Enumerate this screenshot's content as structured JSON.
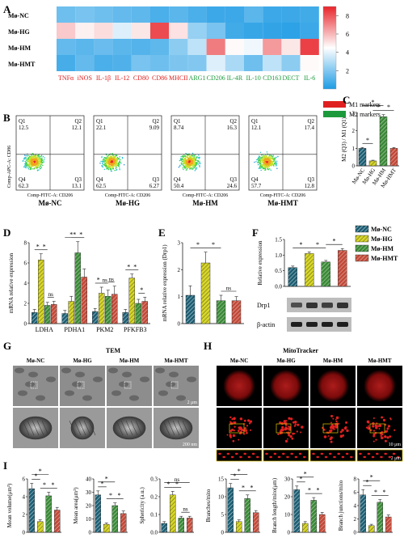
{
  "colors": {
    "nc": "#1f5f74",
    "hg": "#d6d52c",
    "hm": "#3c8a3a",
    "hmt": "#c24a3a",
    "m1": "#e02020",
    "m2": "#1c9a3b",
    "heat_low": "#1e9be4",
    "heat_high": "#e8242a"
  },
  "groups": [
    "Mø-NC",
    "Mø-HG",
    "Mø-HM",
    "Mø-HMT"
  ],
  "panel_a": {
    "label": "A",
    "rows": [
      "Mø-NC",
      "Mø-HG",
      "Mø-HM",
      "Mø-HMT"
    ],
    "columns": [
      {
        "name": "TNFα",
        "type": "m1"
      },
      {
        "name": "iNOS",
        "type": "m1"
      },
      {
        "name": "IL-1β",
        "type": "m1"
      },
      {
        "name": "IL-12",
        "type": "m1"
      },
      {
        "name": "CD80",
        "type": "m1"
      },
      {
        "name": "CD86",
        "type": "m1"
      },
      {
        "name": "MHCII",
        "type": "m1"
      },
      {
        "name": "ARG1",
        "type": "m2"
      },
      {
        "name": "CD206",
        "type": "m2"
      },
      {
        "name": "IL-4R",
        "type": "m2"
      },
      {
        "name": "IL-10",
        "type": "m2"
      },
      {
        "name": "CD163",
        "type": "m2"
      },
      {
        "name": "DECT",
        "type": "m2"
      },
      {
        "name": "IL-6",
        "type": "m2"
      }
    ],
    "colorbar_ticks": [
      2,
      4,
      6,
      8
    ],
    "colorbar_range": [
      0,
      9
    ],
    "legend": [
      {
        "label": "M1 markers",
        "type": "m1"
      },
      {
        "label": "M2 markers",
        "type": "m2"
      }
    ]
  },
  "panel_b": {
    "label": "B",
    "y_axis": "Comp-APC-A: CD86",
    "x_axis": "Comp-FITC-A: CD206",
    "plots": [
      {
        "name": "Mø-NC",
        "q1": "Q1",
        "q1v": "12.5",
        "q2": "Q2",
        "q2v": "12.1",
        "q3": "Q3",
        "q3v": "13.1",
        "q4": "Q4",
        "q4v": "62.3"
      },
      {
        "name": "Mø-HG",
        "q1": "Q1",
        "q1v": "22.1",
        "q2": "Q2",
        "q2v": "9.09",
        "q3": "Q3",
        "q3v": "6.27",
        "q4": "Q4",
        "q4v": "62.5"
      },
      {
        "name": "Mø-HM",
        "q1": "Q1",
        "q1v": "8.74",
        "q2": "Q2",
        "q2v": "16.3",
        "q3": "Q3",
        "q3v": "24.6",
        "q4": "Q4",
        "q4v": "50.4"
      },
      {
        "name": "Mø-HMT",
        "q1": "Q1",
        "q1v": "12.1",
        "q2": "Q2",
        "q2v": "17.4",
        "q3": "Q3",
        "q3v": "12.8",
        "q4": "Q4",
        "q4v": "57.7"
      }
    ]
  },
  "panel_c": {
    "label": "C"
  },
  "panel_d": {
    "label": "D"
  },
  "panel_e": {
    "label": "E"
  },
  "panel_f": {
    "label": "F",
    "blot_labels": [
      "Drp1",
      "β-actin"
    ]
  },
  "panel_g": {
    "label": "G",
    "title": "TEM",
    "scale_top": "2 μm",
    "scale_bottom": "200 nm"
  },
  "panel_h": {
    "label": "H",
    "title": "MitoTracker",
    "scale_mid": "10 μm",
    "scale_bottom": "2 μm"
  },
  "panel_i": {
    "label": "I"
  },
  "chart_data": [
    {
      "id": "A",
      "type": "heatmap",
      "rows": [
        "Mø-NC",
        "Mø-HG",
        "Mø-HM",
        "Mø-HMT"
      ],
      "columns": [
        "TNFα",
        "iNOS",
        "IL-1β",
        "IL-12",
        "CD80",
        "CD86",
        "MHCII",
        "ARG1",
        "CD206",
        "IL-4R",
        "IL-10",
        "CD163",
        "DECT",
        "IL-6"
      ],
      "values": [
        [
          1.6,
          1.8,
          1.6,
          1.4,
          1.3,
          0.9,
          1.2,
          0.9,
          0.6,
          0.6,
          1.2,
          0.6,
          0.6,
          0.7
        ],
        [
          5.6,
          4.8,
          5.2,
          3.8,
          5.0,
          8.2,
          5.1,
          2.4,
          1.8,
          0.7,
          0.5,
          0.4,
          0.3,
          0.6
        ],
        [
          1.4,
          1.2,
          1.5,
          1.2,
          1.1,
          1.3,
          2.2,
          3.2,
          7.2,
          4.6,
          4.2,
          6.6,
          5.0,
          8.4
        ],
        [
          0.8,
          1.4,
          0.9,
          1.0,
          1.8,
          1.6,
          1.9,
          2.0,
          3.8,
          2.8,
          1.6,
          3.2,
          2.2,
          4.6
        ]
      ],
      "color_range": [
        0,
        9
      ]
    },
    {
      "id": "C",
      "type": "bar",
      "categories": [
        "Mø-NC",
        "Mø-HG",
        "Mø-HM",
        "Mø-HMT"
      ],
      "values": [
        1.0,
        0.28,
        2.8,
        1.0
      ],
      "errors": [
        0.05,
        0.04,
        0.12,
        0.05
      ],
      "ylabel": "M2 (Q3) / M1 (Q1)",
      "ylim": [
        0,
        3
      ],
      "yticks": [
        0,
        1,
        2,
        3
      ],
      "sig": [
        {
          "from": 0,
          "to": 1,
          "label": "*"
        },
        {
          "from": 0,
          "to": 2,
          "label": "*"
        },
        {
          "from": 1,
          "to": 2,
          "label": "*"
        },
        {
          "from": 2,
          "to": 3,
          "label": "*"
        }
      ]
    },
    {
      "id": "D",
      "type": "bar",
      "categories": [
        "LDHA",
        "PDHA1",
        "PKM2",
        "PFKFB3"
      ],
      "series": [
        {
          "name": "Mø-NC",
          "values": [
            1.1,
            1.0,
            1.2,
            1.1
          ],
          "errors": [
            0.3,
            0.3,
            0.3,
            0.3
          ]
        },
        {
          "name": "Mø-HG",
          "values": [
            6.3,
            2.2,
            3.0,
            4.5
          ],
          "errors": [
            0.6,
            0.5,
            0.6,
            0.4
          ]
        },
        {
          "name": "Mø-HM",
          "values": [
            1.8,
            7.0,
            2.7,
            2.0
          ],
          "errors": [
            0.3,
            1.1,
            0.6,
            0.4
          ]
        },
        {
          "name": "Mø-HMT",
          "values": [
            1.9,
            4.6,
            2.9,
            2.2
          ],
          "errors": [
            0.3,
            0.8,
            0.8,
            0.4
          ]
        }
      ],
      "ylabel": "mRNA relative expression",
      "ylim": [
        0,
        8
      ],
      "yticks": [
        0,
        2,
        4,
        6,
        8
      ],
      "sig": [
        {
          "cat": 0,
          "from": 0,
          "to": 1,
          "label": "*"
        },
        {
          "cat": 0,
          "from": 1,
          "to": 2,
          "label": "*"
        },
        {
          "cat": 0,
          "from": 2,
          "to": 3,
          "label": "ns"
        },
        {
          "cat": 1,
          "from": 0,
          "to": 2,
          "label": "*"
        },
        {
          "cat": 1,
          "from": 1,
          "to": 2,
          "label": "*"
        },
        {
          "cat": 1,
          "from": 2,
          "to": 3,
          "label": "*"
        },
        {
          "cat": 2,
          "from": 0,
          "to": 1,
          "label": "*"
        },
        {
          "cat": 2,
          "from": 1,
          "to": 2,
          "label": "ns"
        },
        {
          "cat": 2,
          "from": 2,
          "to": 3,
          "label": "ns"
        },
        {
          "cat": 3,
          "from": 0,
          "to": 1,
          "label": "*"
        },
        {
          "cat": 3,
          "from": 1,
          "to": 2,
          "label": "*"
        },
        {
          "cat": 3,
          "from": 2,
          "to": 3,
          "label": "*"
        }
      ]
    },
    {
      "id": "E",
      "type": "bar",
      "categories": [
        "Mø-NC",
        "Mø-HG",
        "Mø-HM",
        "Mø-HMT"
      ],
      "values": [
        1.05,
        2.25,
        0.85,
        0.85
      ],
      "errors": [
        0.35,
        0.4,
        0.2,
        0.15
      ],
      "ylabel": "mRNA relative expression (Drp1)",
      "ylim": [
        0,
        3
      ],
      "yticks": [
        0,
        1,
        2,
        3
      ],
      "sig": [
        {
          "from": 0,
          "to": 1,
          "label": "*"
        },
        {
          "from": 1,
          "to": 2,
          "label": "*"
        },
        {
          "from": 2,
          "to": 3,
          "label": "ns"
        }
      ]
    },
    {
      "id": "F",
      "type": "bar",
      "categories": [
        "Mø-NC",
        "Mø-HG",
        "Mø-HM",
        "Mø-HMT"
      ],
      "values": [
        0.6,
        1.05,
        0.78,
        1.15
      ],
      "errors": [
        0.05,
        0.05,
        0.05,
        0.06
      ],
      "ylabel": "Relative expression",
      "ylim": [
        0,
        1.5
      ],
      "yticks": [
        0.0,
        0.5,
        1.0,
        1.5
      ],
      "sig": [
        {
          "from": 0,
          "to": 1,
          "label": "*"
        },
        {
          "from": 1,
          "to": 2,
          "label": "*"
        },
        {
          "from": 2,
          "to": 3,
          "label": "*"
        }
      ]
    },
    {
      "id": "I1",
      "type": "bar",
      "categories": [
        "Mø-NC",
        "Mø-HG",
        "Mø-HM",
        "Mø-HMT"
      ],
      "values": [
        4.9,
        1.2,
        4.1,
        2.5
      ],
      "errors": [
        0.6,
        0.2,
        0.4,
        0.3
      ],
      "ylabel": "Mean volume(μm³)",
      "ylim": [
        0,
        6
      ],
      "yticks": [
        0,
        2,
        4,
        6
      ],
      "sig": [
        {
          "from": 0,
          "to": 1,
          "label": "*"
        },
        {
          "from": 0,
          "to": 2,
          "label": "*"
        },
        {
          "from": 1,
          "to": 2,
          "label": "*"
        },
        {
          "from": 2,
          "to": 3,
          "label": "*"
        }
      ]
    },
    {
      "id": "I2",
      "type": "bar",
      "categories": [
        "Mø-NC",
        "Mø-HG",
        "Mø-HM",
        "Mø-HMT"
      ],
      "values": [
        28,
        6,
        20,
        14
      ],
      "errors": [
        3,
        1,
        2,
        2
      ],
      "ylabel": "Mean area(μm²)",
      "ylim": [
        0,
        40
      ],
      "yticks": [
        0,
        10,
        20,
        30,
        40
      ],
      "sig": [
        {
          "from": 0,
          "to": 1,
          "label": "*"
        },
        {
          "from": 0,
          "to": 2,
          "label": "*"
        },
        {
          "from": 1,
          "to": 2,
          "label": "*"
        },
        {
          "from": 2,
          "to": 3,
          "label": "*"
        }
      ]
    },
    {
      "id": "I3",
      "type": "bar",
      "categories": [
        "Mø-NC",
        "Mø-HG",
        "Mø-HM",
        "Mø-HMT"
      ],
      "values": [
        0.05,
        0.21,
        0.08,
        0.08
      ],
      "errors": [
        0.01,
        0.02,
        0.01,
        0.01
      ],
      "ylabel": "Sphericity (a.u.)",
      "ylim": [
        0,
        0.3
      ],
      "yticks": [
        0.0,
        0.1,
        0.2,
        0.3
      ],
      "sig": [
        {
          "from": 0,
          "to": 1,
          "label": "*"
        },
        {
          "from": 1,
          "to": 2,
          "label": "*"
        },
        {
          "from": 2,
          "to": 3,
          "label": "ns"
        },
        {
          "from": 0,
          "to": 3,
          "label": "ns"
        }
      ]
    },
    {
      "id": "I4",
      "type": "bar",
      "categories": [
        "Mø-NC",
        "Mø-HG",
        "Mø-HM",
        "Mø-HMT"
      ],
      "values": [
        12.5,
        3,
        9.5,
        5.5
      ],
      "errors": [
        1.2,
        0.5,
        1,
        0.6
      ],
      "ylabel": "Branches/mito",
      "ylim": [
        0,
        15
      ],
      "yticks": [
        0,
        5,
        10,
        15
      ],
      "sig": [
        {
          "from": 0,
          "to": 1,
          "label": "*"
        },
        {
          "from": 0,
          "to": 2,
          "label": "*"
        },
        {
          "from": 1,
          "to": 2,
          "label": "*"
        },
        {
          "from": 2,
          "to": 3,
          "label": "*"
        }
      ]
    },
    {
      "id": "I5",
      "type": "bar",
      "categories": [
        "Mø-NC",
        "Mø-HG",
        "Mø-HM",
        "Mø-HMT"
      ],
      "values": [
        24,
        5,
        18,
        10
      ],
      "errors": [
        2,
        1,
        1.5,
        1.2
      ],
      "ylabel": "Branch length/mito(μm)",
      "ylim": [
        0,
        30
      ],
      "yticks": [
        0,
        10,
        20,
        30
      ],
      "sig": [
        {
          "from": 0,
          "to": 1,
          "label": "*"
        },
        {
          "from": 0,
          "to": 2,
          "label": "*"
        },
        {
          "from": 1,
          "to": 2,
          "label": "*"
        },
        {
          "from": 2,
          "to": 3,
          "label": "*"
        }
      ]
    },
    {
      "id": "I6",
      "type": "bar",
      "categories": [
        "Mø-NC",
        "Mø-HG",
        "Mø-HM",
        "Mø-HMT"
      ],
      "values": [
        5.6,
        1.0,
        4.5,
        2.3
      ],
      "errors": [
        0.8,
        0.2,
        0.4,
        0.3
      ],
      "ylabel": "Branch junctions/mito",
      "ylim": [
        0,
        8
      ],
      "yticks": [
        0,
        2,
        4,
        6,
        8
      ],
      "sig": [
        {
          "from": 0,
          "to": 1,
          "label": "*"
        },
        {
          "from": 0,
          "to": 2,
          "label": "*"
        },
        {
          "from": 1,
          "to": 2,
          "label": "*"
        },
        {
          "from": 2,
          "to": 3,
          "label": "*"
        }
      ]
    }
  ]
}
